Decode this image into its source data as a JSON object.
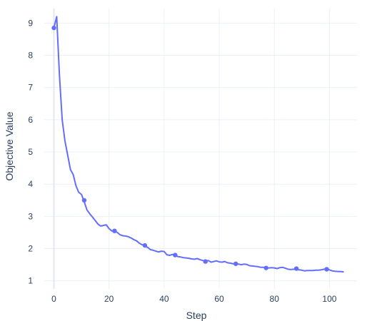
{
  "chart_data": {
    "type": "line",
    "xlabel": "Step",
    "ylabel": "Objective Value",
    "xlim": [
      -3.5,
      110
    ],
    "ylim": [
      0.75,
      9.45
    ],
    "xticks": [
      0,
      20,
      40,
      60,
      80,
      100
    ],
    "yticks": [
      1,
      2,
      3,
      4,
      5,
      6,
      7,
      8,
      9
    ],
    "grid": true,
    "legend": "none",
    "colors": {
      "line": "#636efa",
      "grid": "#ebf0f8",
      "zeroline": "#e2e7f0",
      "text": "#2a3f5f",
      "background": "#ffffff"
    },
    "series": [
      {
        "mode": "lines",
        "x": [
          0,
          1,
          2,
          3,
          4,
          5,
          6,
          7,
          8,
          9,
          10,
          11,
          12,
          13,
          14,
          15,
          16,
          17,
          18,
          19,
          20,
          21,
          22,
          23,
          24,
          25,
          26,
          27,
          28,
          29,
          30,
          31,
          32,
          33,
          34,
          35,
          36,
          37,
          38,
          39,
          40,
          41,
          42,
          43,
          44,
          45,
          46,
          47,
          48,
          49,
          50,
          51,
          52,
          53,
          54,
          55,
          56,
          57,
          58,
          59,
          60,
          61,
          62,
          63,
          64,
          65,
          66,
          67,
          68,
          69,
          70,
          71,
          72,
          73,
          74,
          75,
          76,
          77,
          78,
          79,
          80,
          81,
          82,
          83,
          84,
          85,
          86,
          87,
          88,
          89,
          90,
          91,
          92,
          93,
          94,
          95,
          96,
          97,
          98,
          99,
          100,
          101,
          102,
          103,
          104,
          105
        ],
        "y": [
          8.85,
          9.2,
          7.4,
          6.0,
          5.35,
          4.9,
          4.45,
          4.3,
          3.95,
          3.75,
          3.68,
          3.45,
          3.2,
          3.08,
          2.98,
          2.87,
          2.76,
          2.7,
          2.72,
          2.74,
          2.62,
          2.55,
          2.54,
          2.5,
          2.43,
          2.4,
          2.39,
          2.37,
          2.33,
          2.28,
          2.24,
          2.17,
          2.12,
          2.09,
          2.04,
          1.97,
          1.95,
          1.92,
          1.9,
          1.92,
          1.91,
          1.81,
          1.79,
          1.82,
          1.8,
          1.75,
          1.74,
          1.72,
          1.71,
          1.7,
          1.68,
          1.67,
          1.69,
          1.66,
          1.63,
          1.61,
          1.63,
          1.58,
          1.6,
          1.62,
          1.59,
          1.58,
          1.6,
          1.56,
          1.55,
          1.53,
          1.53,
          1.52,
          1.5,
          1.52,
          1.51,
          1.47,
          1.46,
          1.45,
          1.44,
          1.42,
          1.42,
          1.41,
          1.4,
          1.41,
          1.4,
          1.38,
          1.41,
          1.42,
          1.39,
          1.36,
          1.35,
          1.36,
          1.35,
          1.34,
          1.33,
          1.31,
          1.32,
          1.32,
          1.32,
          1.33,
          1.33,
          1.34,
          1.36,
          1.35,
          1.34,
          1.31,
          1.3,
          1.29,
          1.29,
          1.28
        ]
      },
      {
        "mode": "markers",
        "x": [
          0,
          11,
          22,
          33,
          44,
          55,
          66,
          77,
          88,
          99
        ],
        "y": [
          8.85,
          3.5,
          2.55,
          2.1,
          1.8,
          1.6,
          1.53,
          1.4,
          1.38,
          1.36
        ]
      }
    ]
  }
}
